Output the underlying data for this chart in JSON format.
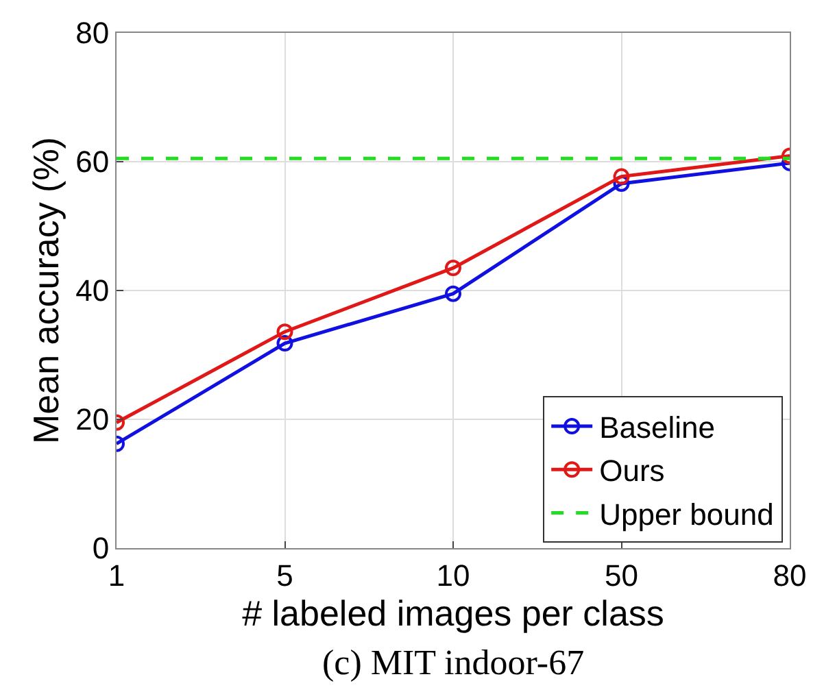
{
  "chart_data": {
    "type": "line",
    "categories": [
      "1",
      "5",
      "10",
      "50",
      "80"
    ],
    "series": [
      {
        "name": "Baseline",
        "color": "#1010e0",
        "values": [
          16.2,
          31.8,
          39.5,
          56.6,
          59.8
        ]
      },
      {
        "name": "Ours",
        "color": "#e01818",
        "values": [
          19.5,
          33.6,
          43.5,
          57.7,
          60.9
        ]
      }
    ],
    "ref_lines": [
      {
        "axis": "y",
        "value": 60.5,
        "label": "Upper bound",
        "color": "#22dd22",
        "line_style": "dashed"
      }
    ],
    "xlabel": "# labeled images per class",
    "ylabel": "Mean accuracy (%)",
    "ylim": [
      0,
      80
    ],
    "yticks": [
      0,
      20,
      40,
      60,
      80
    ],
    "grid": true,
    "legend": "bottom right",
    "marker": "circle",
    "line_style": "solid",
    "annotations": [
      "(c) MIT indoor-67"
    ]
  }
}
